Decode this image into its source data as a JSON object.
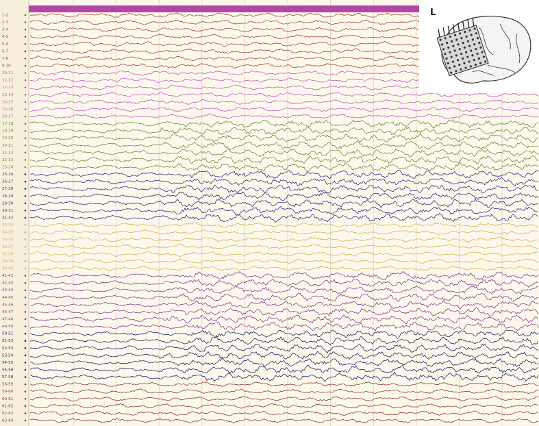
{
  "channels": [
    "1-2",
    "2-3",
    "3-4",
    "4-5",
    "5-6",
    "6-7",
    "7-8",
    "9-10",
    "10-11",
    "11-12",
    "12-13",
    "13-14",
    "14-15",
    "15-16",
    "16-17",
    "17-18",
    "18-19",
    "19-20",
    "20-21",
    "21-22",
    "22-23",
    "23-24",
    "25-26",
    "26-27",
    "27-28",
    "28-29",
    "29-30",
    "30-31",
    "31-32",
    "33-34",
    "34-35",
    "35-36",
    "36-37",
    "37-38",
    "38-39",
    "39-40",
    "41-42",
    "42-43",
    "43-44",
    "44-45",
    "45-46",
    "46-47",
    "47-48",
    "49-50",
    "50-51",
    "51-52",
    "52-53",
    "53-54",
    "54-55",
    "55-56",
    "57-58",
    "58-59",
    "59-60",
    "60-61",
    "61-62",
    "62-63",
    "63-64"
  ],
  "inset": {
    "label": "L"
  }
}
